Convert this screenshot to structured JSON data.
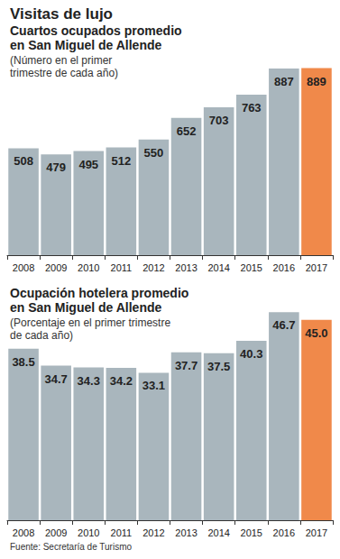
{
  "header": {
    "title": "Visitas de lujo"
  },
  "chart_data": [
    {
      "type": "bar",
      "title": "Cuartos ocupados promedio\nen San Miguel de Allende",
      "subtitle": "(Número en el primer\ntrimestre de cada año)",
      "categories": [
        "2008",
        "2009",
        "2010",
        "2011",
        "2012",
        "2013",
        "2014",
        "2015",
        "2016",
        "2017"
      ],
      "values": [
        508,
        479,
        495,
        512,
        550,
        652,
        703,
        763,
        887,
        889
      ],
      "colors": [
        "#a9b6bd",
        "#a9b6bd",
        "#a9b6bd",
        "#a9b6bd",
        "#a9b6bd",
        "#a9b6bd",
        "#a9b6bd",
        "#a9b6bd",
        "#a9b6bd",
        "#f0894a"
      ],
      "ylim": [
        0,
        900
      ],
      "yticks": [
        0,
        900
      ],
      "grid": false,
      "data_labels": true,
      "tick_labels": "x"
    },
    {
      "type": "bar",
      "title": "Ocupación hotelera promedio\nen San Miguel de Allende",
      "subtitle": "(Porcentaje en el primer trimestre\nde cada año)",
      "categories": [
        "2008",
        "2009",
        "2010",
        "2011",
        "2012",
        "2013",
        "2014",
        "2015",
        "2016",
        "2017"
      ],
      "values": [
        38.5,
        34.7,
        34.3,
        34.2,
        33.1,
        37.7,
        37.5,
        40.3,
        46.7,
        45
      ],
      "value_labels": [
        "38.5",
        "34.7",
        "34.3",
        "34.2",
        "33.1",
        "37.7",
        "37.5",
        "40.3",
        "46.7",
        "45.0"
      ],
      "colors": [
        "#a9b6bd",
        "#a9b6bd",
        "#a9b6bd",
        "#a9b6bd",
        "#a9b6bd",
        "#a9b6bd",
        "#a9b6bd",
        "#a9b6bd",
        "#a9b6bd",
        "#f0894a"
      ],
      "ylim": [
        0,
        50
      ],
      "yticks": [
        0,
        50
      ],
      "grid": false,
      "data_labels": true,
      "tick_labels": "x"
    }
  ],
  "footer": {
    "source": "Fuente: Secretaría de Turismo"
  }
}
